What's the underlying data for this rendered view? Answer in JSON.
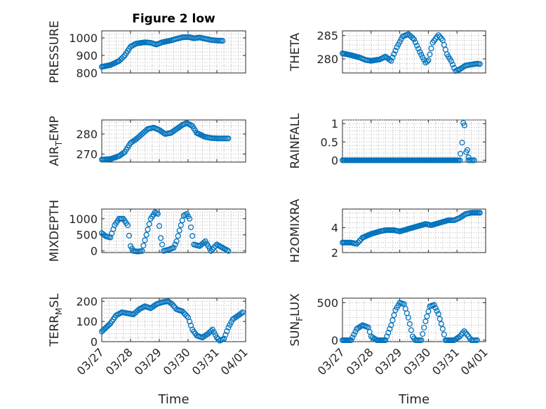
{
  "figure_title": "Figure 2 low",
  "x_axis_label": "Time",
  "date_ticks": [
    "03/27",
    "03/28",
    "03/29",
    "03/30",
    "03/31",
    "04/01"
  ],
  "marker_color": "#0072BD",
  "chart_data": [
    {
      "type": "scatter",
      "title": "Figure 2 low",
      "ylabel": "PRESSURE",
      "ylabel_parts": [
        "PRESSURE"
      ],
      "xlim": [
        0,
        5
      ],
      "ylim": [
        800,
        1040
      ],
      "yticks": [
        800,
        900,
        1000
      ],
      "grid": true,
      "curve": [
        [
          0,
          835
        ],
        [
          0.3,
          845
        ],
        [
          0.6,
          868
        ],
        [
          0.8,
          900
        ],
        [
          1.0,
          950
        ],
        [
          1.2,
          968
        ],
        [
          1.5,
          975
        ],
        [
          1.7,
          972
        ],
        [
          1.9,
          962
        ],
        [
          2.1,
          975
        ],
        [
          2.4,
          985
        ],
        [
          2.6,
          995
        ],
        [
          2.8,
          1003
        ],
        [
          3.0,
          1005
        ],
        [
          3.2,
          998
        ],
        [
          3.4,
          1002
        ],
        [
          3.6,
          995
        ],
        [
          3.8,
          988
        ],
        [
          4.0,
          985
        ],
        [
          4.2,
          983
        ]
      ]
    },
    {
      "type": "scatter",
      "ylabel": "THETA",
      "ylabel_parts": [
        "THETA"
      ],
      "xlim": [
        0,
        5
      ],
      "ylim": [
        277,
        286
      ],
      "yticks": [
        280,
        285
      ],
      "grid": true,
      "curve": [
        [
          0,
          281.2
        ],
        [
          0.3,
          280.8
        ],
        [
          0.6,
          280.3
        ],
        [
          0.8,
          279.8
        ],
        [
          1.0,
          279.6
        ],
        [
          1.3,
          279.9
        ],
        [
          1.5,
          280.5
        ],
        [
          1.7,
          279.6
        ],
        [
          1.9,
          282.5
        ],
        [
          2.1,
          284.8
        ],
        [
          2.3,
          285.3
        ],
        [
          2.5,
          284.2
        ],
        [
          2.7,
          281.5
        ],
        [
          2.9,
          279.2
        ],
        [
          3.0,
          279.7
        ],
        [
          3.15,
          283.5
        ],
        [
          3.35,
          285.1
        ],
        [
          3.5,
          284.0
        ],
        [
          3.65,
          281.0
        ],
        [
          3.8,
          279.5
        ],
        [
          3.95,
          277.4
        ],
        [
          4.1,
          277.8
        ],
        [
          4.3,
          278.6
        ],
        [
          4.5,
          278.8
        ],
        [
          4.7,
          279.0
        ],
        [
          4.8,
          278.9
        ]
      ]
    },
    {
      "type": "scatter",
      "ylabel": "AIR_TEMP",
      "ylabel_parts": [
        "AIR",
        "T",
        "EMP"
      ],
      "xlim": [
        0,
        5
      ],
      "ylim": [
        266,
        287
      ],
      "yticks": [
        270,
        280
      ],
      "grid": true,
      "curve": [
        [
          0,
          267.2
        ],
        [
          0.3,
          267.5
        ],
        [
          0.6,
          269.0
        ],
        [
          0.8,
          271.0
        ],
        [
          1.0,
          275.5
        ],
        [
          1.2,
          277.5
        ],
        [
          1.4,
          280.0
        ],
        [
          1.6,
          282.5
        ],
        [
          1.8,
          283.2
        ],
        [
          2.0,
          282.0
        ],
        [
          2.2,
          280.0
        ],
        [
          2.4,
          280.5
        ],
        [
          2.6,
          282.5
        ],
        [
          2.8,
          284.5
        ],
        [
          2.95,
          285.5
        ],
        [
          3.15,
          284.0
        ],
        [
          3.3,
          280.5
        ],
        [
          3.6,
          278.5
        ],
        [
          3.8,
          278.0
        ],
        [
          4.0,
          277.8
        ],
        [
          4.2,
          277.8
        ],
        [
          4.4,
          277.8
        ]
      ]
    },
    {
      "type": "scatter",
      "ylabel": "RAINFALL",
      "ylabel_parts": [
        "RAINFALL"
      ],
      "xlim": [
        0,
        5
      ],
      "ylim": [
        -0.05,
        1.1
      ],
      "yticks": [
        0,
        0.5,
        1
      ],
      "ytick_labels": [
        "0",
        "0.5",
        "1"
      ],
      "grid": true,
      "curve": [
        [
          0,
          0
        ],
        [
          4.1,
          0
        ]
      ],
      "spikes": [
        [
          4.12,
          0.18
        ],
        [
          4.18,
          0.48
        ],
        [
          4.22,
          1.02
        ],
        [
          4.26,
          0.95
        ],
        [
          4.32,
          0.22
        ],
        [
          4.36,
          0.28
        ],
        [
          4.4,
          0.08
        ]
      ],
      "tail": [
        [
          4.4,
          0
        ],
        [
          4.6,
          0
        ]
      ]
    },
    {
      "type": "scatter",
      "ylabel": "MIXDEPTH",
      "ylabel_parts": [
        "MIXDEPTH"
      ],
      "xlim": [
        0,
        5
      ],
      "ylim": [
        -50,
        1300
      ],
      "yticks": [
        0,
        500,
        1000
      ],
      "grid": true,
      "curve": [
        [
          0,
          550
        ],
        [
          0.15,
          450
        ],
        [
          0.3,
          420
        ],
        [
          0.45,
          800
        ],
        [
          0.6,
          1000
        ],
        [
          0.75,
          1000
        ],
        [
          0.9,
          800
        ],
        [
          1.0,
          150
        ],
        [
          1.1,
          0
        ],
        [
          1.25,
          -20
        ],
        [
          1.4,
          0
        ],
        [
          1.55,
          500
        ],
        [
          1.7,
          1000
        ],
        [
          1.85,
          1200
        ],
        [
          1.95,
          1150
        ],
        [
          2.05,
          400
        ],
        [
          2.15,
          0
        ],
        [
          2.35,
          50
        ],
        [
          2.5,
          100
        ],
        [
          2.6,
          300
        ],
        [
          2.75,
          800
        ],
        [
          2.85,
          1100
        ],
        [
          2.95,
          1150
        ],
        [
          3.05,
          1000
        ],
        [
          3.2,
          200
        ],
        [
          3.4,
          150
        ],
        [
          3.6,
          300
        ],
        [
          3.8,
          0
        ],
        [
          4.0,
          200
        ],
        [
          4.2,
          100
        ],
        [
          4.4,
          0
        ]
      ]
    },
    {
      "type": "scatter",
      "ylabel": "H2OMIXRA",
      "ylabel_parts": [
        "H2OMIXRA"
      ],
      "xlim": [
        0,
        5
      ],
      "ylim": [
        2,
        5.5
      ],
      "yticks": [
        2,
        4
      ],
      "grid": true,
      "curve": [
        [
          0,
          2.8
        ],
        [
          0.3,
          2.8
        ],
        [
          0.5,
          2.7
        ],
        [
          0.7,
          3.2
        ],
        [
          1.0,
          3.5
        ],
        [
          1.3,
          3.7
        ],
        [
          1.5,
          3.8
        ],
        [
          1.8,
          3.8
        ],
        [
          2.0,
          3.7
        ],
        [
          2.3,
          3.9
        ],
        [
          2.6,
          4.1
        ],
        [
          2.9,
          4.3
        ],
        [
          3.1,
          4.2
        ],
        [
          3.4,
          4.4
        ],
        [
          3.7,
          4.6
        ],
        [
          3.9,
          4.6
        ],
        [
          4.1,
          4.8
        ],
        [
          4.3,
          5.1
        ],
        [
          4.5,
          5.2
        ],
        [
          4.8,
          5.2
        ]
      ]
    },
    {
      "type": "scatter",
      "ylabel": "TERR_MSL",
      "ylabel_parts": [
        "TERR",
        "M",
        "SL"
      ],
      "xlim": [
        0,
        5
      ],
      "ylim": [
        0,
        215
      ],
      "yticks": [
        0,
        100,
        200
      ],
      "grid": true,
      "curve": [
        [
          0,
          50
        ],
        [
          0.3,
          90
        ],
        [
          0.5,
          130
        ],
        [
          0.7,
          145
        ],
        [
          0.9,
          140
        ],
        [
          1.1,
          135
        ],
        [
          1.3,
          160
        ],
        [
          1.5,
          175
        ],
        [
          1.7,
          165
        ],
        [
          1.9,
          185
        ],
        [
          2.1,
          195
        ],
        [
          2.3,
          200
        ],
        [
          2.45,
          185
        ],
        [
          2.6,
          160
        ],
        [
          2.8,
          150
        ],
        [
          3.0,
          120
        ],
        [
          3.15,
          60
        ],
        [
          3.3,
          30
        ],
        [
          3.5,
          20
        ],
        [
          3.7,
          40
        ],
        [
          3.85,
          60
        ],
        [
          4.0,
          20
        ],
        [
          4.1,
          5
        ],
        [
          4.25,
          15
        ],
        [
          4.4,
          70
        ],
        [
          4.55,
          110
        ],
        [
          4.75,
          130
        ],
        [
          4.9,
          145
        ]
      ]
    },
    {
      "type": "scatter",
      "ylabel": "SUN_FLUX",
      "ylabel_parts": [
        "SUN",
        "F",
        "LUX"
      ],
      "xlim": [
        0,
        5
      ],
      "ylim": [
        -20,
        560
      ],
      "yticks": [
        0,
        500
      ],
      "grid": true,
      "curve": [
        [
          0,
          0
        ],
        [
          0.3,
          0
        ],
        [
          0.5,
          150
        ],
        [
          0.7,
          200
        ],
        [
          0.9,
          170
        ],
        [
          1.0,
          50
        ],
        [
          1.2,
          0
        ],
        [
          1.5,
          0
        ],
        [
          1.7,
          200
        ],
        [
          1.85,
          400
        ],
        [
          2.0,
          500
        ],
        [
          2.15,
          480
        ],
        [
          2.3,
          300
        ],
        [
          2.45,
          50
        ],
        [
          2.55,
          0
        ],
        [
          2.75,
          0
        ],
        [
          2.9,
          250
        ],
        [
          3.05,
          450
        ],
        [
          3.2,
          470
        ],
        [
          3.35,
          350
        ],
        [
          3.5,
          150
        ],
        [
          3.6,
          0
        ],
        [
          3.9,
          0
        ],
        [
          4.1,
          50
        ],
        [
          4.25,
          120
        ],
        [
          4.4,
          50
        ],
        [
          4.5,
          0
        ],
        [
          4.7,
          0
        ]
      ]
    }
  ]
}
